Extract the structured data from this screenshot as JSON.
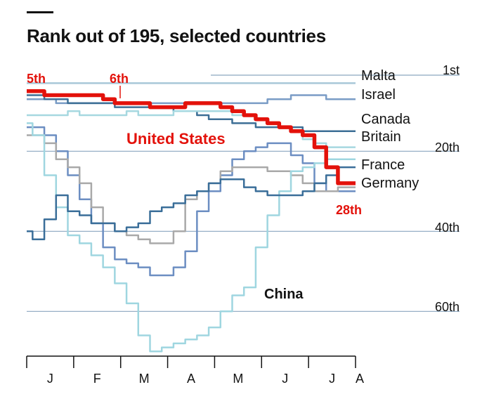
{
  "title": "Rank out of 195, selected countries",
  "chart_data": {
    "type": "line",
    "title": "Rank out of 195, selected countries",
    "y_axis": {
      "range": [
        1,
        70
      ],
      "inverted": true,
      "gridlines": [
        1,
        20,
        40,
        60
      ],
      "tick_labels": [
        "1st",
        "20th",
        "40th",
        "60th"
      ]
    },
    "x_axis": {
      "tick_labels": [
        "J",
        "F",
        "M",
        "A",
        "M",
        "J",
        "J",
        "A"
      ]
    },
    "x": [
      0,
      0.25,
      0.5,
      0.75,
      1,
      1.25,
      1.5,
      1.75,
      2,
      2.25,
      2.5,
      2.75,
      3,
      3.25,
      3.5,
      3.75,
      4,
      4.25,
      4.5,
      4.75,
      5,
      5.25,
      5.5,
      5.75,
      6,
      6.25,
      6.5,
      6.75,
      7
    ],
    "series": [
      {
        "name": "Malta",
        "color": "#a8c8d8",
        "width": 2.5,
        "values": [
          3,
          3,
          3,
          3,
          3,
          3,
          3,
          3,
          3,
          3,
          3,
          3,
          3,
          3,
          3,
          3,
          3,
          3,
          3,
          3,
          3,
          3,
          3,
          3,
          3,
          3,
          3,
          3,
          3
        ]
      },
      {
        "name": "Israel",
        "color": "#7a9cc6",
        "width": 2.5,
        "values": [
          7,
          7,
          7,
          8,
          8,
          8,
          8,
          8,
          8,
          8,
          8,
          8,
          8,
          8,
          8,
          8,
          8,
          8,
          8,
          8,
          8,
          7,
          7,
          6,
          6,
          6,
          7,
          7,
          7
        ]
      },
      {
        "name": "Canada",
        "color": "#3c6e95",
        "width": 2.5,
        "values": [
          6,
          6,
          7,
          7,
          8,
          8,
          8,
          8,
          9,
          9,
          9,
          9,
          9,
          10,
          10,
          11,
          12,
          12,
          13,
          13,
          14,
          14,
          14,
          14,
          15,
          15,
          15,
          15,
          15
        ]
      },
      {
        "name": "Britain",
        "color": "#a6d8e0",
        "width": 2.5,
        "values": [
          11,
          11,
          11,
          11,
          10,
          11,
          11,
          11,
          11,
          10,
          11,
          11,
          11,
          10,
          10,
          10,
          10,
          10,
          11,
          11,
          12,
          13,
          14,
          15,
          17,
          18,
          19,
          19,
          19
        ]
      },
      {
        "name": "France",
        "color": "#6c8ec2",
        "width": 2.5,
        "values": [
          14,
          14,
          16,
          20,
          26,
          32,
          38,
          44,
          47,
          48,
          49,
          51,
          51,
          49,
          45,
          35,
          30,
          26,
          22,
          20,
          19,
          18,
          18,
          21,
          23,
          28,
          30,
          30,
          30
        ]
      },
      {
        "name": "Germany",
        "color": "#a9a9a9",
        "width": 2.5,
        "values": [
          16,
          16,
          18,
          22,
          24,
          28,
          34,
          38,
          40,
          41,
          42,
          43,
          43,
          40,
          32,
          30,
          28,
          25,
          24,
          24,
          24,
          25,
          25,
          26,
          28,
          30,
          30,
          29,
          29
        ]
      },
      {
        "name": "China",
        "color": "#9fd6e0",
        "width": 2.5,
        "values": [
          13,
          16,
          26,
          34,
          41,
          43,
          46,
          49,
          53,
          58,
          66,
          70,
          69,
          68,
          67,
          66,
          64,
          60,
          56,
          54,
          44,
          36,
          30,
          25,
          24,
          23,
          22,
          22,
          22
        ]
      },
      {
        "name": "",
        "color": "#3a6e99",
        "width": 2.5,
        "values": [
          40,
          42,
          37,
          31,
          35,
          36,
          38,
          38,
          40,
          39,
          38,
          35,
          34,
          33,
          31,
          30,
          28,
          27,
          27,
          29,
          30,
          31,
          31,
          31,
          30,
          28,
          26,
          24,
          24
        ]
      },
      {
        "name": "United States",
        "color": "#e3120b",
        "width": 5.5,
        "values": [
          5,
          5,
          6,
          6,
          6,
          6,
          6,
          7,
          8,
          8,
          8,
          9,
          9,
          9,
          8,
          8,
          8,
          9,
          10,
          11,
          12,
          13,
          14,
          15,
          16,
          19,
          24,
          28,
          28
        ]
      }
    ]
  },
  "labels": {
    "malta": "Malta",
    "israel": "Israel",
    "canada": "Canada",
    "britain": "Britain",
    "france": "France",
    "germany": "Germany",
    "china": "China",
    "us": "United States",
    "us_start": "5th",
    "us_peak": "6th",
    "us_end": "28th",
    "grid_1": "1st",
    "grid_20": "20th",
    "grid_40": "40th",
    "grid_60": "60th"
  },
  "months": [
    "J",
    "F",
    "M",
    "A",
    "M",
    "J",
    "J",
    "A"
  ],
  "colors": {
    "us_red": "#e3120b",
    "grid": "#8aa6bf",
    "ink": "#121212"
  }
}
